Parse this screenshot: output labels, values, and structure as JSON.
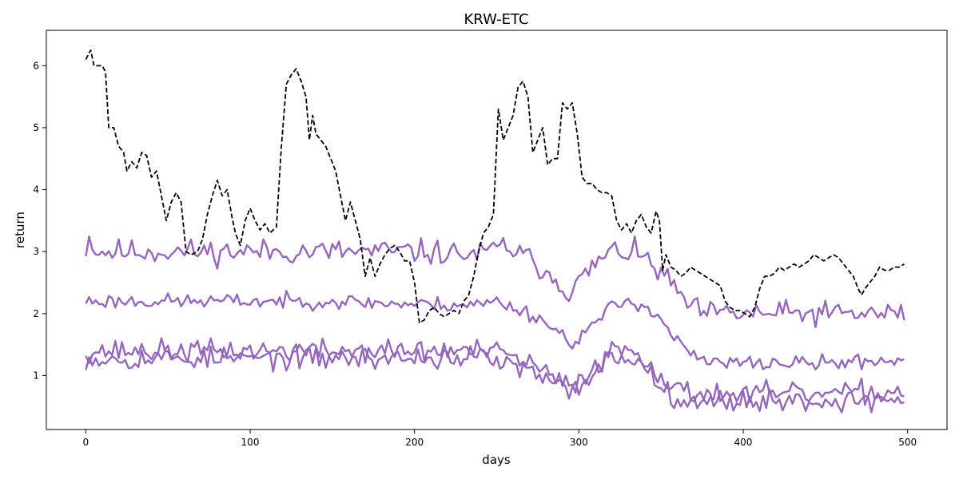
{
  "chart_data": {
    "type": "line",
    "title": "KRW-ETC",
    "xlabel": "days",
    "ylabel": "return",
    "xlim": [
      -24,
      524
    ],
    "ylim": [
      0.13,
      6.57
    ],
    "xticks": [
      0,
      100,
      200,
      300,
      400,
      500
    ],
    "yticks": [
      1,
      2,
      3,
      4,
      5,
      6
    ],
    "grid": false,
    "legend": "none",
    "colors": {
      "benchmark": "#000000",
      "sim": "#9467bd"
    },
    "series": [
      {
        "style": "dashed",
        "color": "#000000",
        "points": [
          [
            0,
            6.1
          ],
          [
            3,
            6.25
          ],
          [
            5,
            6.0
          ],
          [
            10,
            6.0
          ],
          [
            12,
            5.9
          ],
          [
            14,
            5.0
          ],
          [
            17,
            5.0
          ],
          [
            20,
            4.7
          ],
          [
            23,
            4.6
          ],
          [
            25,
            4.3
          ],
          [
            28,
            4.45
          ],
          [
            31,
            4.35
          ],
          [
            34,
            4.6
          ],
          [
            37,
            4.55
          ],
          [
            40,
            4.2
          ],
          [
            43,
            4.3
          ],
          [
            46,
            3.9
          ],
          [
            49,
            3.5
          ],
          [
            52,
            3.8
          ],
          [
            55,
            3.95
          ],
          [
            58,
            3.8
          ],
          [
            61,
            3.0
          ],
          [
            64,
            2.95
          ],
          [
            68,
            3.0
          ],
          [
            71,
            3.2
          ],
          [
            74,
            3.6
          ],
          [
            77,
            3.9
          ],
          [
            80,
            4.15
          ],
          [
            83,
            3.9
          ],
          [
            86,
            4.0
          ],
          [
            89,
            3.55
          ],
          [
            91,
            3.3
          ],
          [
            94,
            3.1
          ],
          [
            97,
            3.5
          ],
          [
            100,
            3.7
          ],
          [
            103,
            3.5
          ],
          [
            106,
            3.35
          ],
          [
            109,
            3.45
          ],
          [
            112,
            3.3
          ],
          [
            116,
            3.4
          ],
          [
            119,
            4.7
          ],
          [
            122,
            5.7
          ],
          [
            125,
            5.85
          ],
          [
            128,
            5.95
          ],
          [
            131,
            5.75
          ],
          [
            134,
            5.5
          ],
          [
            136,
            4.8
          ],
          [
            138,
            5.2
          ],
          [
            140,
            4.9
          ],
          [
            143,
            4.8
          ],
          [
            146,
            4.7
          ],
          [
            149,
            4.5
          ],
          [
            152,
            4.3
          ],
          [
            155,
            3.9
          ],
          [
            158,
            3.5
          ],
          [
            161,
            3.8
          ],
          [
            164,
            3.5
          ],
          [
            167,
            3.2
          ],
          [
            170,
            2.6
          ],
          [
            173,
            2.9
          ],
          [
            176,
            2.6
          ],
          [
            179,
            2.8
          ],
          [
            182,
            2.95
          ],
          [
            185,
            3.05
          ],
          [
            188,
            3.1
          ],
          [
            191,
            3.0
          ],
          [
            194,
            2.85
          ],
          [
            197,
            2.85
          ],
          [
            200,
            2.5
          ],
          [
            203,
            1.85
          ],
          [
            206,
            1.9
          ],
          [
            209,
            2.05
          ],
          [
            212,
            2.1
          ],
          [
            215,
            2.0
          ],
          [
            218,
            1.95
          ],
          [
            221,
            2.0
          ],
          [
            224,
            2.05
          ],
          [
            227,
            2.0
          ],
          [
            230,
            2.2
          ],
          [
            233,
            2.3
          ],
          [
            236,
            2.6
          ],
          [
            239,
            3.0
          ],
          [
            242,
            3.3
          ],
          [
            245,
            3.4
          ],
          [
            248,
            3.6
          ],
          [
            251,
            5.3
          ],
          [
            254,
            4.8
          ],
          [
            257,
            5.0
          ],
          [
            260,
            5.2
          ],
          [
            263,
            5.65
          ],
          [
            266,
            5.75
          ],
          [
            269,
            5.5
          ],
          [
            272,
            4.6
          ],
          [
            275,
            4.8
          ],
          [
            278,
            5.0
          ],
          [
            281,
            4.4
          ],
          [
            284,
            4.5
          ],
          [
            287,
            4.5
          ],
          [
            290,
            5.4
          ],
          [
            293,
            5.3
          ],
          [
            296,
            5.4
          ],
          [
            299,
            4.9
          ],
          [
            302,
            4.2
          ],
          [
            305,
            4.1
          ],
          [
            308,
            4.1
          ],
          [
            311,
            4.0
          ],
          [
            314,
            3.95
          ],
          [
            317,
            3.95
          ],
          [
            320,
            3.9
          ],
          [
            323,
            3.5
          ],
          [
            326,
            3.35
          ],
          [
            329,
            3.45
          ],
          [
            332,
            3.3
          ],
          [
            335,
            3.5
          ],
          [
            338,
            3.6
          ],
          [
            341,
            3.4
          ],
          [
            344,
            3.3
          ],
          [
            347,
            3.65
          ],
          [
            349,
            3.5
          ],
          [
            351,
            2.7
          ],
          [
            353,
            2.95
          ],
          [
            356,
            2.75
          ],
          [
            359,
            2.7
          ],
          [
            362,
            2.6
          ],
          [
            365,
            2.65
          ],
          [
            368,
            2.75
          ],
          [
            371,
            2.7
          ],
          [
            374,
            2.65
          ],
          [
            377,
            2.6
          ],
          [
            380,
            2.55
          ],
          [
            383,
            2.5
          ],
          [
            386,
            2.45
          ],
          [
            389,
            2.2
          ],
          [
            392,
            2.1
          ],
          [
            395,
            2.05
          ],
          [
            398,
            2.05
          ],
          [
            401,
            2.0
          ],
          [
            404,
            1.95
          ],
          [
            407,
            2.1
          ],
          [
            410,
            2.4
          ],
          [
            413,
            2.6
          ],
          [
            416,
            2.6
          ],
          [
            419,
            2.65
          ],
          [
            422,
            2.75
          ],
          [
            425,
            2.7
          ],
          [
            428,
            2.75
          ],
          [
            431,
            2.8
          ],
          [
            434,
            2.75
          ],
          [
            437,
            2.8
          ],
          [
            440,
            2.85
          ],
          [
            443,
            2.95
          ],
          [
            446,
            2.9
          ],
          [
            449,
            2.85
          ],
          [
            452,
            2.9
          ],
          [
            455,
            2.95
          ],
          [
            458,
            2.9
          ],
          [
            461,
            2.8
          ],
          [
            464,
            2.7
          ],
          [
            467,
            2.6
          ],
          [
            470,
            2.4
          ],
          [
            472,
            2.3
          ],
          [
            474,
            2.4
          ],
          [
            477,
            2.5
          ],
          [
            480,
            2.6
          ],
          [
            483,
            2.75
          ],
          [
            486,
            2.7
          ],
          [
            489,
            2.7
          ],
          [
            492,
            2.75
          ],
          [
            495,
            2.75
          ],
          [
            498,
            2.8
          ]
        ]
      },
      {
        "style": "solid",
        "color": "#9467bd",
        "amplitude": 0.1,
        "seed": 11,
        "points": [
          [
            0,
            3.05
          ],
          [
            3,
            3.3
          ],
          [
            5,
            3.0
          ],
          [
            50,
            3.0
          ],
          [
            100,
            3.0
          ],
          [
            150,
            3.0
          ],
          [
            200,
            3.0
          ],
          [
            240,
            2.95
          ],
          [
            255,
            3.1
          ],
          [
            265,
            2.95
          ],
          [
            280,
            2.7
          ],
          [
            290,
            2.45
          ],
          [
            295,
            2.35
          ],
          [
            300,
            2.5
          ],
          [
            310,
            2.8
          ],
          [
            320,
            3.0
          ],
          [
            330,
            3.0
          ],
          [
            340,
            2.9
          ],
          [
            350,
            2.65
          ],
          [
            360,
            2.35
          ],
          [
            370,
            2.05
          ],
          [
            380,
            2.0
          ],
          [
            400,
            2.0
          ],
          [
            450,
            2.0
          ],
          [
            490,
            2.0
          ],
          [
            499,
            2.0
          ]
        ]
      },
      {
        "style": "solid",
        "color": "#9467bd",
        "amplitude": 0.06,
        "seed": 23,
        "points": [
          [
            0,
            2.2
          ],
          [
            50,
            2.2
          ],
          [
            100,
            2.2
          ],
          [
            150,
            2.2
          ],
          [
            200,
            2.15
          ],
          [
            240,
            2.15
          ],
          [
            250,
            2.2
          ],
          [
            260,
            2.1
          ],
          [
            275,
            1.95
          ],
          [
            285,
            1.75
          ],
          [
            295,
            1.55
          ],
          [
            300,
            1.6
          ],
          [
            310,
            1.85
          ],
          [
            320,
            2.1
          ],
          [
            330,
            2.2
          ],
          [
            340,
            2.15
          ],
          [
            350,
            1.9
          ],
          [
            360,
            1.55
          ],
          [
            370,
            1.3
          ],
          [
            380,
            1.2
          ],
          [
            400,
            1.2
          ],
          [
            450,
            1.2
          ],
          [
            490,
            1.25
          ],
          [
            499,
            1.25
          ]
        ]
      },
      {
        "style": "solid",
        "color": "#9467bd",
        "amplitude": 0.09,
        "seed": 37,
        "points": [
          [
            0,
            1.4
          ],
          [
            50,
            1.4
          ],
          [
            100,
            1.4
          ],
          [
            150,
            1.4
          ],
          [
            200,
            1.4
          ],
          [
            240,
            1.4
          ],
          [
            255,
            1.35
          ],
          [
            270,
            1.2
          ],
          [
            285,
            0.95
          ],
          [
            295,
            0.8
          ],
          [
            305,
            1.05
          ],
          [
            320,
            1.4
          ],
          [
            330,
            1.45
          ],
          [
            340,
            1.3
          ],
          [
            350,
            1.0
          ],
          [
            360,
            0.75
          ],
          [
            370,
            0.7
          ],
          [
            400,
            0.7
          ],
          [
            450,
            0.7
          ],
          [
            499,
            0.75
          ]
        ]
      },
      {
        "style": "solid",
        "color": "#9467bd",
        "amplitude": 0.09,
        "seed": 53,
        "points": [
          [
            0,
            1.28
          ],
          [
            50,
            1.28
          ],
          [
            100,
            1.28
          ],
          [
            150,
            1.28
          ],
          [
            200,
            1.28
          ],
          [
            240,
            1.3
          ],
          [
            255,
            1.2
          ],
          [
            270,
            1.05
          ],
          [
            285,
            0.85
          ],
          [
            295,
            0.72
          ],
          [
            305,
            0.95
          ],
          [
            320,
            1.3
          ],
          [
            330,
            1.3
          ],
          [
            340,
            1.15
          ],
          [
            350,
            0.85
          ],
          [
            360,
            0.65
          ],
          [
            370,
            0.6
          ],
          [
            400,
            0.6
          ],
          [
            450,
            0.58
          ],
          [
            499,
            0.62
          ]
        ]
      }
    ]
  }
}
